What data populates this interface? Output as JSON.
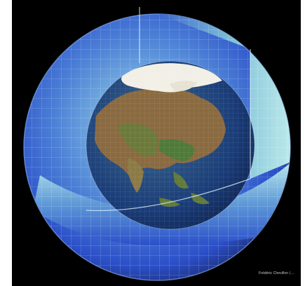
{
  "image": {
    "subject": "globe-cutaway-illustration",
    "credit_text": "Frédéric Chevillon | ...",
    "colors": {
      "background": "#000000",
      "outer_shell": "#2b4fc8",
      "inner_shell": "#9fe0e0",
      "land": "#8a6a40",
      "ocean": "#1a3c78",
      "ice": "#f1efe6"
    }
  }
}
